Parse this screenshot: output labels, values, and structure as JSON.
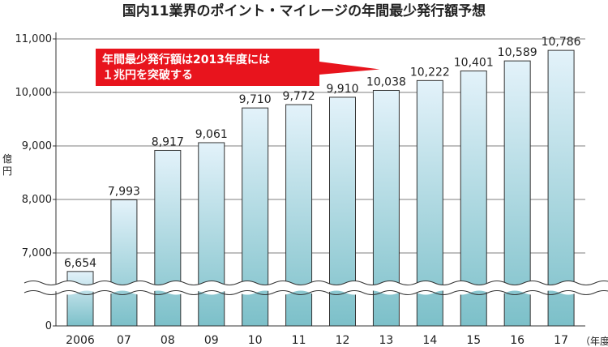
{
  "chart_data": {
    "type": "bar",
    "title": "国内11業界のポイント・マイレージの年間最少発行額予想",
    "ylabel": "億円",
    "xunit": "（年度）",
    "categories": [
      "2006",
      "07",
      "08",
      "09",
      "10",
      "11",
      "12",
      "13",
      "14",
      "15",
      "16",
      "17"
    ],
    "values": [
      6654,
      7993,
      8917,
      9061,
      9710,
      9772,
      9910,
      10038,
      10222,
      10401,
      10589,
      10786
    ],
    "value_labels": [
      "6,654",
      "7,993",
      "8,917",
      "9,061",
      "9,710",
      "9,772",
      "9,910",
      "10,038",
      "10,222",
      "10,401",
      "10,589",
      "10,786"
    ],
    "yticks": [
      0,
      7000,
      8000,
      9000,
      10000,
      11000
    ],
    "ytick_labels": [
      "0",
      "7,000",
      "8,000",
      "9,000",
      "10,000",
      "11,000"
    ],
    "ylim": [
      6000,
      11000
    ],
    "axis_break": true,
    "grid": true,
    "annotation": {
      "lines": [
        "年間最少発行額は2013年度には",
        "１兆円を突破する"
      ],
      "points_to": "13",
      "color": "#e8141d"
    },
    "colors": {
      "bar_top": "#e3f2fa",
      "bar_bottom": "#7cc0c9",
      "bar_stroke": "#333333",
      "callout": "#e8141d"
    }
  }
}
